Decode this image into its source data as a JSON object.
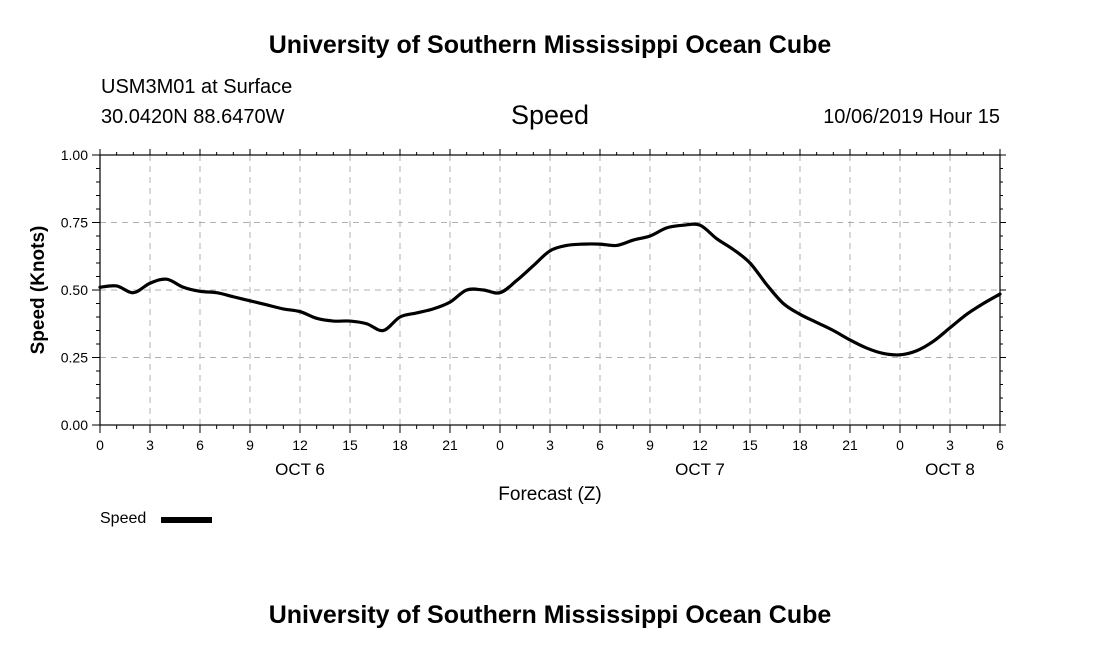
{
  "header": {
    "title": "University of Southern Mississippi Ocean Cube",
    "station": "USM3M01 at Surface",
    "coords": "30.0420N 88.6470W",
    "chart_title": "Speed",
    "datetime": "10/06/2019 Hour 15"
  },
  "footer": {
    "title": "University of Southern Mississippi Ocean Cube"
  },
  "legend": {
    "label": "Speed",
    "color": "#000000"
  },
  "chart_data": {
    "type": "line",
    "title": "Speed",
    "xlabel": "Forecast (Z)",
    "ylabel": "Speed (Knots)",
    "ylim": [
      0,
      1
    ],
    "y_ticks": [
      "0.00",
      "0.25",
      "0.50",
      "0.75",
      "1.00"
    ],
    "x_range_hours": [
      0,
      54
    ],
    "x_tick_labels": [
      "0",
      "3",
      "6",
      "9",
      "12",
      "15",
      "18",
      "21",
      "0",
      "3",
      "6",
      "9",
      "12",
      "15",
      "18",
      "21",
      "0",
      "3",
      "6"
    ],
    "date_labels": [
      {
        "label": "OCT 6",
        "hour": 12
      },
      {
        "label": "OCT 7",
        "hour": 36
      },
      {
        "label": "OCT 8",
        "hour": 51
      }
    ],
    "grid": true,
    "legend_position": "bottom-left",
    "series": [
      {
        "name": "Speed",
        "x": [
          0,
          1,
          2,
          3,
          4,
          5,
          6,
          7,
          8,
          9,
          10,
          11,
          12,
          13,
          14,
          15,
          16,
          17,
          18,
          19,
          20,
          21,
          22,
          23,
          24,
          25,
          26,
          27,
          28,
          29,
          30,
          31,
          32,
          33,
          34,
          35,
          36,
          37,
          38,
          39,
          40,
          41,
          42,
          43,
          44,
          45,
          46,
          47,
          48,
          49,
          50,
          51,
          52,
          53,
          54
        ],
        "values": [
          0.51,
          0.515,
          0.49,
          0.525,
          0.54,
          0.51,
          0.495,
          0.49,
          0.475,
          0.46,
          0.445,
          0.43,
          0.42,
          0.395,
          0.385,
          0.385,
          0.375,
          0.35,
          0.4,
          0.415,
          0.43,
          0.455,
          0.5,
          0.5,
          0.49,
          0.535,
          0.59,
          0.645,
          0.665,
          0.67,
          0.67,
          0.665,
          0.685,
          0.7,
          0.73,
          0.74,
          0.74,
          0.69,
          0.65,
          0.6,
          0.52,
          0.45,
          0.41,
          0.38,
          0.35,
          0.315,
          0.285,
          0.265,
          0.26,
          0.275,
          0.31,
          0.36,
          0.41,
          0.45,
          0.485
        ]
      }
    ]
  }
}
